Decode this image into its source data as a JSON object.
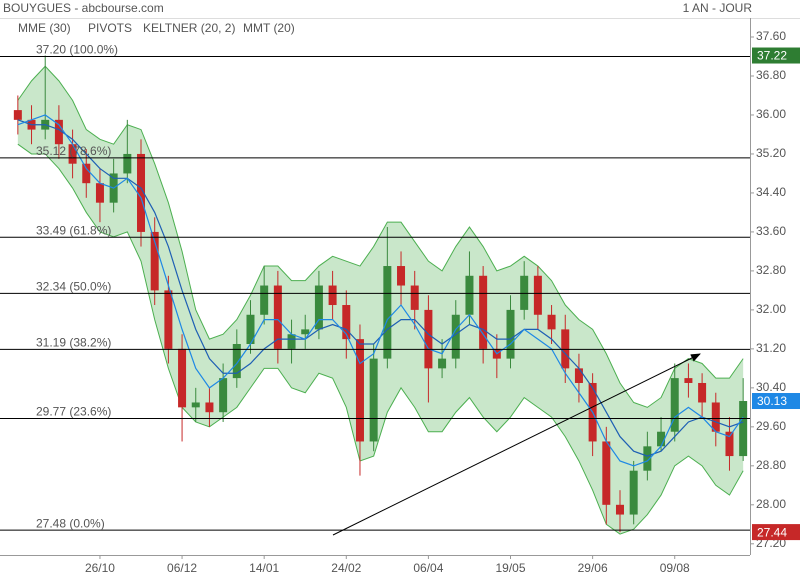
{
  "chart_data": {
    "type": "candlestick",
    "title": "BOUYGUES - abcbourse.com",
    "period": "1 AN - JOUR",
    "categories": [
      null,
      null,
      null,
      null,
      null,
      null,
      "26/10",
      null,
      null,
      null,
      null,
      null,
      "06/12",
      null,
      null,
      null,
      null,
      null,
      "14/01",
      null,
      null,
      null,
      null,
      null,
      "24/02",
      null,
      null,
      null,
      null,
      null,
      "06/04",
      null,
      null,
      null,
      null,
      null,
      "19/05",
      null,
      null,
      null,
      null,
      null,
      "29/06",
      null,
      null,
      null,
      null,
      null,
      "09/08",
      null,
      null,
      null,
      null,
      null
    ],
    "open": [
      36.1,
      35.9,
      35.7,
      35.9,
      35.4,
      35.0,
      34.6,
      34.2,
      34.8,
      35.2,
      33.6,
      32.4,
      31.2,
      30.0,
      30.1,
      29.9,
      30.6,
      31.3,
      31.9,
      32.5,
      31.2,
      31.5,
      31.6,
      32.5,
      32.1,
      31.4,
      29.3,
      31.0,
      32.9,
      32.5,
      32.0,
      30.8,
      31.0,
      31.9,
      32.7,
      31.2,
      31.0,
      32.0,
      32.7,
      31.9,
      31.6,
      30.8,
      30.5,
      29.3,
      28.0,
      27.8,
      28.7,
      29.2,
      29.5,
      30.6,
      30.5,
      30.1,
      29.5,
      29.0
    ],
    "high": [
      36.4,
      36.2,
      37.22,
      36.2,
      35.7,
      35.3,
      34.9,
      35.1,
      35.9,
      35.5,
      33.9,
      32.7,
      31.5,
      30.4,
      30.4,
      30.9,
      31.6,
      32.2,
      32.9,
      32.8,
      31.8,
      31.9,
      32.8,
      32.8,
      32.4,
      31.7,
      31.3,
      33.7,
      33.2,
      32.8,
      32.3,
      31.4,
      32.2,
      33.2,
      32.9,
      31.5,
      32.3,
      33.0,
      32.9,
      32.1,
      31.9,
      31.1,
      30.7,
      29.6,
      28.3,
      28.9,
      29.5,
      29.8,
      30.9,
      30.9,
      30.7,
      30.3,
      29.8,
      30.6
    ],
    "low": [
      35.6,
      35.4,
      35.5,
      35.1,
      34.7,
      34.3,
      33.8,
      34.0,
      34.6,
      33.3,
      32.1,
      30.9,
      29.3,
      29.7,
      29.6,
      29.7,
      30.4,
      31.1,
      31.7,
      30.9,
      30.9,
      31.2,
      31.4,
      31.8,
      31.0,
      28.6,
      29.1,
      30.8,
      32.1,
      31.6,
      30.1,
      30.6,
      30.8,
      31.7,
      30.9,
      30.6,
      30.8,
      31.8,
      31.6,
      31.3,
      30.5,
      30.1,
      29.0,
      27.6,
      27.44,
      27.6,
      28.5,
      29.1,
      29.3,
      30.2,
      29.8,
      29.2,
      28.7,
      28.9
    ],
    "close": [
      35.9,
      35.7,
      35.9,
      35.4,
      35.0,
      34.6,
      34.2,
      34.8,
      35.2,
      33.6,
      32.4,
      31.2,
      30.0,
      30.1,
      29.9,
      30.6,
      31.3,
      31.9,
      32.5,
      31.2,
      31.5,
      31.6,
      32.5,
      32.1,
      31.4,
      29.3,
      31.0,
      32.9,
      32.5,
      32.0,
      30.8,
      31.0,
      31.9,
      32.7,
      31.2,
      31.0,
      32.0,
      32.7,
      31.9,
      31.6,
      30.8,
      30.5,
      29.3,
      28.0,
      27.8,
      28.7,
      29.2,
      29.5,
      30.6,
      30.5,
      30.1,
      29.5,
      29.0,
      30.13
    ],
    "up_color": "#3a8a3e",
    "down_color": "#c62828",
    "keltner": {
      "name": "KELTNER (20, 2)",
      "color": "#4caf50",
      "upper": [
        36.3,
        36.7,
        37.0,
        36.7,
        36.3,
        35.7,
        35.5,
        35.4,
        35.8,
        35.7,
        35.0,
        34.2,
        33.2,
        32.0,
        31.4,
        31.5,
        31.8,
        32.3,
        32.9,
        32.9,
        32.6,
        32.6,
        32.9,
        33.1,
        33.0,
        32.9,
        33.3,
        33.8,
        33.8,
        33.4,
        33.0,
        32.8,
        33.3,
        33.7,
        33.3,
        32.8,
        32.9,
        33.1,
        32.9,
        32.6,
        32.1,
        31.8,
        31.6,
        31.1,
        30.5,
        30.1,
        30.0,
        30.2,
        30.8,
        31.0,
        30.9,
        30.6,
        30.6,
        31.0
      ],
      "lower": [
        35.4,
        35.2,
        35.2,
        34.9,
        34.5,
        34.0,
        33.6,
        33.5,
        33.6,
        33.0,
        31.8,
        30.8,
        30.0,
        29.7,
        29.6,
        29.8,
        30.0,
        30.4,
        30.8,
        30.8,
        30.4,
        30.3,
        30.7,
        30.6,
        30.0,
        28.9,
        29.0,
        29.9,
        30.4,
        30.0,
        29.5,
        29.5,
        29.9,
        30.2,
        29.8,
        29.5,
        29.8,
        30.2,
        30.0,
        29.8,
        29.4,
        28.9,
        28.3,
        27.6,
        27.4,
        27.5,
        27.8,
        28.2,
        28.8,
        29.0,
        28.8,
        28.4,
        28.2,
        28.7
      ]
    },
    "series": [
      {
        "name": "MME (30)",
        "color": "#1e5fb4",
        "values": [
          35.9,
          35.8,
          35.8,
          35.7,
          35.5,
          35.2,
          34.9,
          34.7,
          34.7,
          34.5,
          34.0,
          33.3,
          32.4,
          31.6,
          31.0,
          30.7,
          30.7,
          30.9,
          31.2,
          31.4,
          31.4,
          31.4,
          31.6,
          31.7,
          31.6,
          31.3,
          31.3,
          31.6,
          31.8,
          31.8,
          31.5,
          31.3,
          31.5,
          31.7,
          31.6,
          31.4,
          31.4,
          31.6,
          31.6,
          31.4,
          31.1,
          30.8,
          30.4,
          29.9,
          29.4,
          29.1,
          29.0,
          29.1,
          29.4,
          29.7,
          29.8,
          29.7,
          29.6,
          29.7
        ]
      },
      {
        "name": "MMT (20)",
        "color": "#1e88e5",
        "values": [
          35.8,
          35.9,
          36.0,
          35.8,
          35.4,
          34.9,
          34.6,
          34.5,
          34.7,
          34.3,
          33.4,
          32.5,
          31.6,
          30.8,
          30.4,
          30.6,
          30.9,
          31.3,
          31.8,
          31.8,
          31.5,
          31.4,
          31.8,
          31.8,
          31.5,
          30.9,
          31.1,
          31.8,
          32.1,
          31.7,
          31.2,
          31.1,
          31.6,
          31.9,
          31.5,
          31.1,
          31.3,
          31.6,
          31.4,
          31.2,
          30.7,
          30.3,
          29.9,
          29.3,
          28.9,
          28.8,
          28.9,
          29.2,
          29.8,
          30.0,
          29.8,
          29.5,
          29.4,
          29.8
        ]
      }
    ],
    "pivots_label": "PIVOTS",
    "fib_levels": [
      {
        "value": 37.2,
        "label": "37.20 (100.0%)"
      },
      {
        "value": 35.12,
        "label": "35.12 (78.6%)"
      },
      {
        "value": 33.49,
        "label": "33.49 (61.8%)"
      },
      {
        "value": 32.34,
        "label": "32.34 (50.0%)"
      },
      {
        "value": 31.19,
        "label": "31.19 (38.2%)"
      },
      {
        "value": 29.77,
        "label": "29.77 (23.6%)"
      },
      {
        "value": 27.48,
        "label": "27.48 (0.0%)"
      }
    ],
    "tags": [
      {
        "value": 37.22,
        "color": "#2e7d32"
      },
      {
        "value": 30.13,
        "color": "#1e88e5"
      },
      {
        "value": 27.44,
        "color": "#c62828"
      }
    ],
    "ylim": [
      26.97,
      37.99
    ],
    "yticks": [
      {
        "value": 37.6,
        "label": "37.60"
      },
      {
        "value": 36.8,
        "label": "36.80"
      },
      {
        "value": 36,
        "label": "36.00"
      },
      {
        "value": 35.2,
        "label": "35.20"
      },
      {
        "value": 34.4,
        "label": "34.40"
      },
      {
        "value": 33.6,
        "label": "33.60"
      },
      {
        "value": 32.8,
        "label": "32.80"
      },
      {
        "value": 32,
        "label": "32.00"
      },
      {
        "value": 31.2,
        "label": "31.20"
      },
      {
        "value": 30.4,
        "label": "30.40"
      },
      {
        "value": 29.6,
        "label": "29.60"
      },
      {
        "value": 28.8,
        "label": "28.80"
      },
      {
        "value": 28,
        "label": "28.00"
      },
      {
        "value": 27.2,
        "label": "27.20"
      }
    ]
  }
}
